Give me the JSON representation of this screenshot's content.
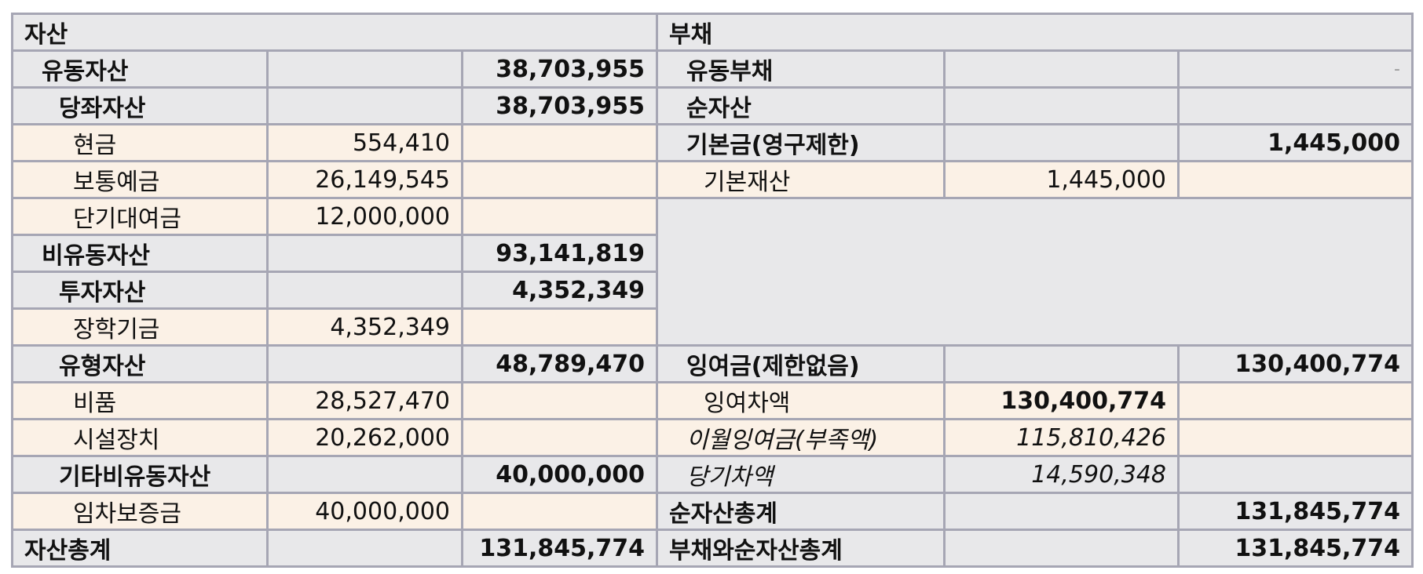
{
  "assets": {
    "header": "자산",
    "current_assets": {
      "label": "유동자산",
      "total": "38,703,955"
    },
    "quick_assets": {
      "label": "당좌자산",
      "total": "38,703,955"
    },
    "cash": {
      "label": "현금",
      "amount": "554,410"
    },
    "ordinary_deposit": {
      "label": "보통예금",
      "amount": "26,149,545"
    },
    "short_term_loan": {
      "label": "단기대여금",
      "amount": "12,000,000"
    },
    "noncurrent_assets": {
      "label": "비유동자산",
      "total": "93,141,819"
    },
    "investment_assets": {
      "label": "투자자산",
      "total": "4,352,349"
    },
    "scholarship_fund": {
      "label": "장학기금",
      "amount": "4,352,349"
    },
    "tangible_assets": {
      "label": "유형자산",
      "total": "48,789,470"
    },
    "equipment": {
      "label": "비품",
      "amount": "28,527,470"
    },
    "facilities": {
      "label": "시설장치",
      "amount": "20,262,000"
    },
    "other_noncurrent": {
      "label": "기타비유동자산",
      "total": "40,000,000"
    },
    "lease_deposit": {
      "label": "임차보증금",
      "amount": "40,000,000"
    },
    "total": {
      "label": "자산총계",
      "value": "131,845,774"
    }
  },
  "liabilities": {
    "header": "부채",
    "current_liabilities": {
      "label": "유동부채",
      "value": "-"
    },
    "net_assets": {
      "label": "순자산"
    },
    "basic_fund": {
      "label": "기본금(영구제한)",
      "total": "1,445,000"
    },
    "basic_property": {
      "label": "기본재산",
      "amount": "1,445,000"
    },
    "surplus": {
      "label": "잉여금(제한없음)",
      "total": "130,400,774"
    },
    "surplus_balance": {
      "label": "잉여차액",
      "amount": "130,400,774"
    },
    "carried_forward": {
      "label": "이월잉여금(부족액)",
      "amount": "115,810,426"
    },
    "current_period": {
      "label": "당기차액",
      "amount": "14,590,348"
    },
    "net_assets_total": {
      "label": "순자산총계",
      "value": "131,845,774"
    },
    "grand_total": {
      "label": "부채와순자산총계",
      "value": "131,845,774"
    }
  }
}
